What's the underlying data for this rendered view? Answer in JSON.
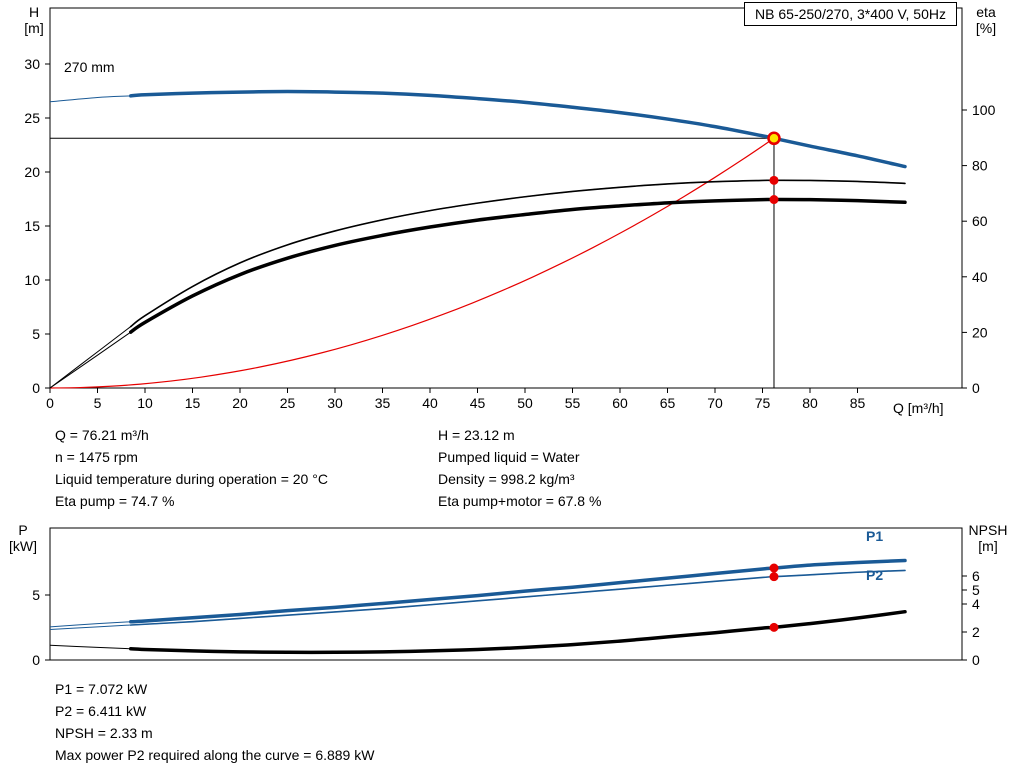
{
  "title_box": "NB 65-250/270, 3*400 V, 50Hz",
  "colors": {
    "blue": "#1a5a96",
    "red": "#e60000",
    "black": "#000000",
    "marker_fill": "#ffe600"
  },
  "labels": {
    "pump_curve": "270 mm",
    "p1": "P1",
    "p2": "P2",
    "top_left_axis_1": "H",
    "top_left_axis_2": "[m]",
    "top_right_axis_1": "eta",
    "top_right_axis_2": "[%]",
    "x_axis": "Q [m³/h]",
    "bottom_left_axis_1": "P",
    "bottom_left_axis_2": "[kW]",
    "bottom_right_axis_1": "NPSH",
    "bottom_right_axis_2": "[m]"
  },
  "info_block": {
    "left": [
      "Q = 76.21 m³/h",
      "n = 1475 rpm",
      "Liquid temperature during operation = 20 °C",
      "Eta pump = 74.7 %"
    ],
    "right": [
      "H = 23.12 m",
      "Pumped liquid = Water",
      "Density = 998.2 kg/m³",
      "Eta pump+motor = 67.8 %"
    ]
  },
  "result_block": [
    "P1 = 7.072 kW",
    "P2 = 6.411 kW",
    "NPSH = 2.33 m",
    "Max power P2 required along the curve = 6.889 kW"
  ],
  "chart_data": [
    {
      "type": "line",
      "title": "NB 65-250/270, 3*400 V, 50Hz",
      "xlabel": "Q [m³/h]",
      "ylabel_left": "H [m]",
      "ylabel_right": "eta [%]",
      "xlim": [
        0,
        96
      ],
      "ylim_left": [
        0,
        30
      ],
      "ylim_right": [
        0,
        100
      ],
      "grid": false,
      "x_ticks": [
        0,
        5,
        10,
        15,
        20,
        25,
        30,
        35,
        40,
        45,
        50,
        55,
        60,
        65,
        70,
        75,
        80,
        85
      ],
      "left_ticks": [
        0,
        5,
        10,
        15,
        20,
        25,
        30
      ],
      "right_ticks": [
        0,
        20,
        40,
        60,
        80,
        100
      ],
      "x": [
        0,
        5,
        8.5,
        10,
        15,
        20,
        25,
        30,
        35,
        40,
        45,
        50,
        55,
        60,
        65,
        70,
        75,
        76.21,
        80,
        85,
        90
      ],
      "series": [
        {
          "name": "head-curve-270mm",
          "label": "270 mm",
          "axis": "left",
          "color": "blue",
          "width": 3.5,
          "thick_from": 8.5,
          "values": [
            26.5,
            26.9,
            27.05,
            27.15,
            27.3,
            27.4,
            27.45,
            27.4,
            27.3,
            27.1,
            26.8,
            26.45,
            26.0,
            25.5,
            24.9,
            24.2,
            23.35,
            23.12,
            22.4,
            21.5,
            20.5
          ]
        },
        {
          "name": "eta-pump-curve",
          "label": "Eta pump",
          "axis": "right",
          "color": "black",
          "width": 1.6,
          "thick_from": 8.5,
          "values": [
            0,
            13,
            22.1,
            26,
            36.5,
            45,
            51.5,
            56.5,
            60.5,
            63.8,
            66.5,
            68.8,
            70.7,
            72.2,
            73.4,
            74.2,
            74.65,
            74.7,
            74.65,
            74.3,
            73.6
          ]
        },
        {
          "name": "eta-pump-motor-curve",
          "label": "Eta pump+motor",
          "axis": "right",
          "color": "black",
          "width": 3.5,
          "thick_from": 8.5,
          "values": [
            0,
            11.8,
            20.1,
            23.6,
            33.1,
            40.8,
            46.7,
            51.3,
            54.9,
            57.9,
            60.4,
            62.4,
            64.2,
            65.5,
            66.6,
            67.3,
            67.75,
            67.8,
            67.75,
            67.4,
            66.8
          ]
        }
      ],
      "system_curve": {
        "shape": "quadratic_through_duty",
        "color": "red"
      },
      "duty_point": {
        "q": 76.21,
        "h": 23.12,
        "eta_pump": 74.7,
        "eta_pump_motor": 67.8
      }
    },
    {
      "type": "line",
      "xlabel": "Q [m³/h]",
      "ylabel_left": "P [kW]",
      "ylabel_right": "NPSH [m]",
      "xlim": [
        0,
        96
      ],
      "ylim_left": [
        0,
        10
      ],
      "ylim_right": [
        0,
        9.4
      ],
      "grid": false,
      "left_ticks": [
        0,
        5
      ],
      "right_ticks": [
        0,
        2,
        4,
        5,
        6
      ],
      "x": [
        0,
        5,
        8.5,
        10,
        15,
        20,
        25,
        30,
        35,
        40,
        45,
        50,
        55,
        60,
        65,
        70,
        75,
        76.21,
        80,
        85,
        90
      ],
      "series": [
        {
          "name": "p1-curve",
          "label": "P1",
          "axis": "left",
          "color": "blue",
          "width": 3.5,
          "thick_from": 8.5,
          "values": [
            2.55,
            2.8,
            2.94,
            3.0,
            3.25,
            3.5,
            3.8,
            4.05,
            4.35,
            4.65,
            4.95,
            5.3,
            5.6,
            5.95,
            6.3,
            6.65,
            7.0,
            7.072,
            7.3,
            7.5,
            7.65
          ]
        },
        {
          "name": "p2-curve",
          "label": "P2",
          "axis": "left",
          "color": "blue",
          "width": 1.6,
          "thick_from": 8.5,
          "values": [
            2.35,
            2.55,
            2.69,
            2.75,
            2.95,
            3.2,
            3.45,
            3.7,
            3.95,
            4.25,
            4.55,
            4.85,
            5.15,
            5.45,
            5.75,
            6.05,
            6.35,
            6.411,
            6.55,
            6.75,
            6.889
          ]
        },
        {
          "name": "npsh-curve",
          "label": "NPSH",
          "axis": "right",
          "color": "black",
          "width": 3.5,
          "thick_from": 8.5,
          "values": [
            1.05,
            0.9,
            0.8,
            0.75,
            0.65,
            0.58,
            0.55,
            0.55,
            0.58,
            0.65,
            0.75,
            0.9,
            1.1,
            1.35,
            1.65,
            1.95,
            2.28,
            2.33,
            2.6,
            3.0,
            3.45
          ]
        }
      ],
      "duty_point": {
        "q": 76.21,
        "p1": 7.072,
        "p2": 6.411,
        "npsh": 2.33
      }
    }
  ]
}
